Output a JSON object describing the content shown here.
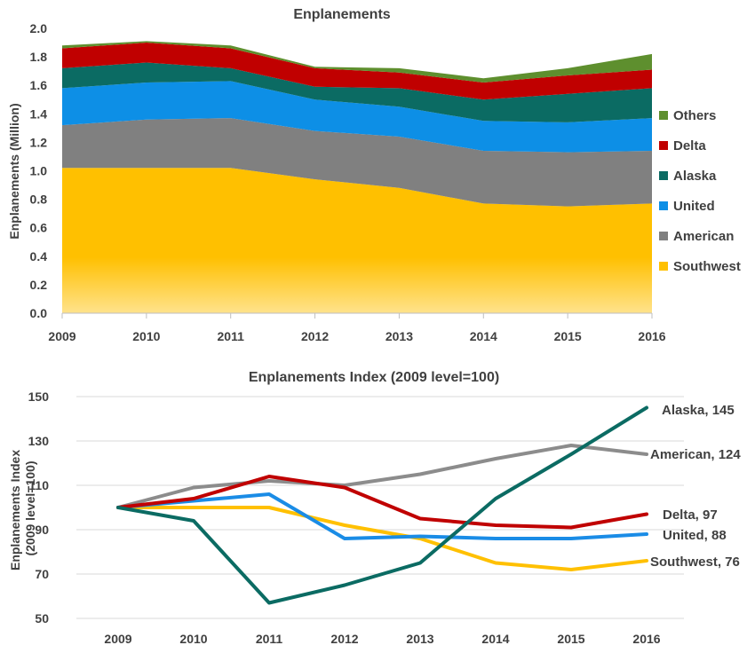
{
  "chart_data": [
    {
      "type": "area",
      "stacked": true,
      "title": "Enplanements",
      "xlabel": "",
      "ylabel": "Enplanements (Million)",
      "ylim": [
        0,
        2.0
      ],
      "yticks": [
        "0.0",
        "0.2",
        "0.4",
        "0.6",
        "0.8",
        "1.0",
        "1.2",
        "1.4",
        "1.6",
        "1.8",
        "2.0"
      ],
      "x": [
        "2009",
        "2010",
        "2011",
        "2012",
        "2013",
        "2014",
        "2015",
        "2016"
      ],
      "legend_position": "right",
      "grid": false,
      "series": [
        {
          "name": "Southwest",
          "color": "#ffc000",
          "values": [
            1.02,
            1.02,
            1.02,
            0.94,
            0.88,
            0.77,
            0.75,
            0.77
          ]
        },
        {
          "name": "American",
          "color": "#808080",
          "values": [
            0.3,
            0.34,
            0.35,
            0.34,
            0.36,
            0.37,
            0.38,
            0.37
          ]
        },
        {
          "name": "United",
          "color": "#0d8fe6",
          "values": [
            0.26,
            0.26,
            0.26,
            0.22,
            0.21,
            0.21,
            0.21,
            0.23
          ]
        },
        {
          "name": "Alaska",
          "color": "#0b6b63",
          "values": [
            0.14,
            0.14,
            0.09,
            0.09,
            0.13,
            0.15,
            0.2,
            0.21
          ]
        },
        {
          "name": "Delta",
          "color": "#c00000",
          "values": [
            0.14,
            0.14,
            0.14,
            0.13,
            0.11,
            0.12,
            0.13,
            0.13
          ]
        },
        {
          "name": "Others",
          "color": "#5e8f2e",
          "values": [
            0.02,
            0.01,
            0.02,
            0.01,
            0.03,
            0.03,
            0.05,
            0.11
          ]
        }
      ]
    },
    {
      "type": "line",
      "title": "Enplanements Index (2009 level=100)",
      "xlabel": "",
      "ylabel": "Enplanements Index (2009 level=100)",
      "ylabel_lines": [
        "Enplanements Index",
        "(2009 level=100)"
      ],
      "ylim": [
        50,
        150
      ],
      "yticks": [
        "50",
        "70",
        "90",
        "110",
        "130",
        "150"
      ],
      "x": [
        "2009",
        "2010",
        "2011",
        "2012",
        "2013",
        "2014",
        "2015",
        "2016"
      ],
      "grid": true,
      "series": [
        {
          "name": "American",
          "label": "American, 124",
          "color": "#8c8c8c",
          "values": [
            100,
            109,
            112,
            110,
            115,
            122,
            128,
            124
          ]
        },
        {
          "name": "Southwest",
          "label": "Southwest, 76",
          "color": "#ffc000",
          "values": [
            100,
            100,
            100,
            92,
            86,
            75,
            72,
            76
          ]
        },
        {
          "name": "United",
          "label": "United, 88",
          "color": "#1a8ce6",
          "values": [
            100,
            103,
            106,
            86,
            87,
            86,
            86,
            88
          ]
        },
        {
          "name": "Delta",
          "label": "Delta, 97",
          "color": "#c00000",
          "values": [
            100,
            104,
            114,
            109,
            95,
            92,
            91,
            97
          ]
        },
        {
          "name": "Alaska",
          "label": "Alaska, 145",
          "color": "#0b6b63",
          "values": [
            100,
            94,
            57,
            65,
            75,
            104,
            124,
            145
          ]
        }
      ]
    }
  ]
}
